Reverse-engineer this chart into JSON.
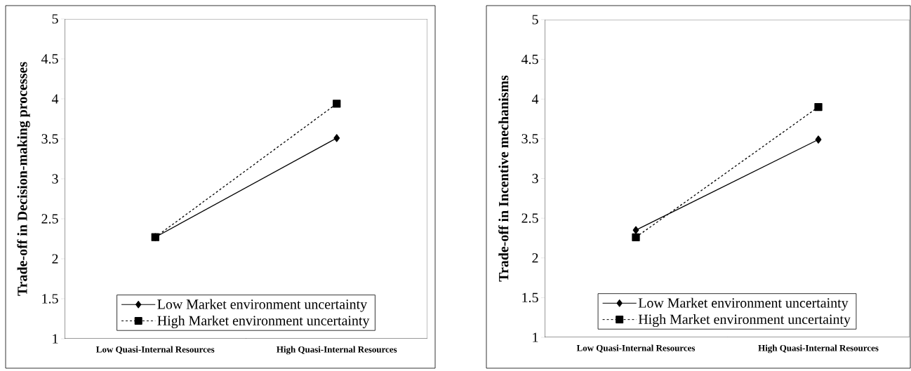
{
  "chart_data": [
    {
      "type": "line",
      "ylabel": "Trade-off in Decision-making processes",
      "categories": [
        "Low Quasi-Internal Resources",
        "High Quasi-Internal Resources"
      ],
      "ylim": [
        1,
        5
      ],
      "yticks": [
        1,
        1.5,
        2,
        2.5,
        3,
        3.5,
        4,
        4.5,
        5
      ],
      "grid": false,
      "legend": "bottom",
      "series": [
        {
          "name": "Low Market environment uncertainty",
          "color": "#000000",
          "values": [
            2.27,
            3.51
          ],
          "marker": "diamond",
          "line_style": "solid"
        },
        {
          "name": "High Market environment uncertainty",
          "color": "#000000",
          "values": [
            2.27,
            3.94
          ],
          "marker": "square",
          "line_style": "dashed"
        }
      ]
    },
    {
      "type": "line",
      "ylabel": "Trade-off in Incentive mechanisms",
      "categories": [
        "Low Quasi-Internal Resources",
        "High Quasi-Internal Resources"
      ],
      "ylim": [
        1,
        5
      ],
      "yticks": [
        1,
        1.5,
        2,
        2.5,
        3,
        3.5,
        4,
        4.5,
        5
      ],
      "grid": false,
      "legend": "bottom",
      "series": [
        {
          "name": "Low Market environment uncertainty",
          "color": "#000000",
          "values": [
            2.35,
            3.49
          ],
          "marker": "diamond",
          "line_style": "solid"
        },
        {
          "name": "High Market environment uncertainty",
          "color": "#000000",
          "values": [
            2.26,
            3.9
          ],
          "marker": "square",
          "line_style": "dashed"
        }
      ]
    }
  ]
}
